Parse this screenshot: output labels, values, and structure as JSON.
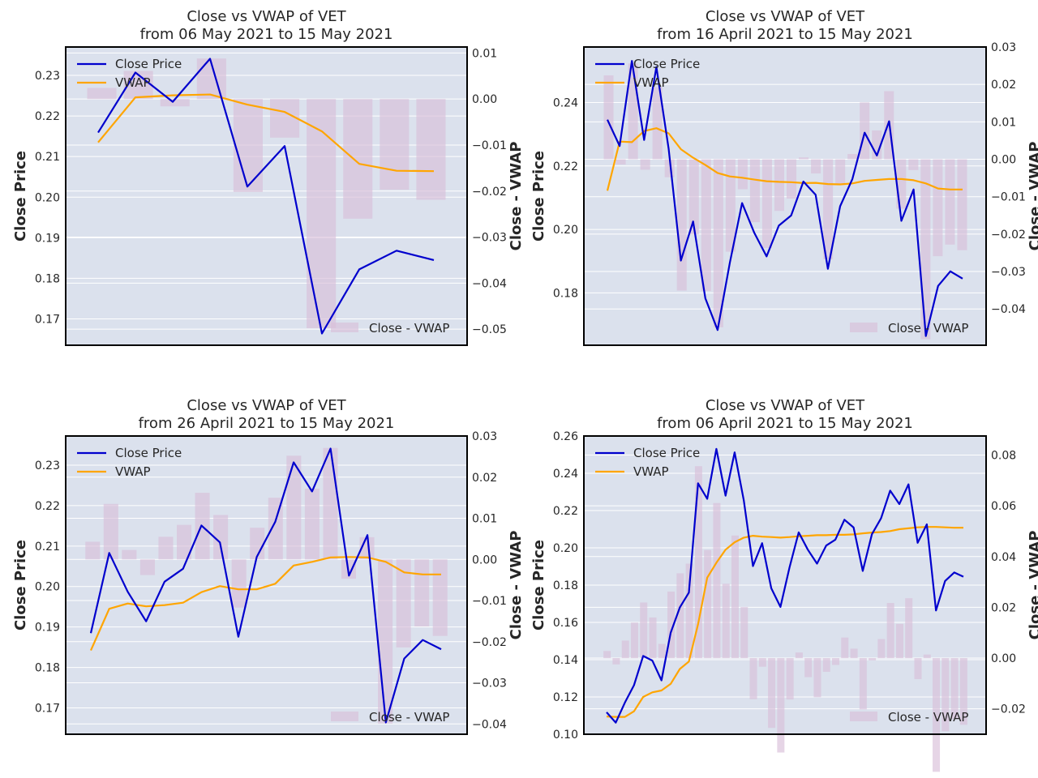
{
  "chart_data": [
    {
      "type": "line",
      "title": "Close vs VWAP of VET\nfrom 06 May 2021 to 15 May 2021",
      "ylabel": "Close Price",
      "y2label": "Close - VWAP",
      "ylim": [
        0.1635,
        0.237
      ],
      "y2lim": [
        -0.0535,
        0.0113
      ],
      "yticks": [
        "0.17",
        "0.18",
        "0.19",
        "0.20",
        "0.21",
        "0.22",
        "0.23"
      ],
      "y2ticks": [
        "−0.05",
        "−0.04",
        "−0.03",
        "−0.02",
        "−0.01",
        "0.00",
        "0.01"
      ],
      "legend_main": [
        "Close Price",
        "VWAP"
      ],
      "legend_diff": "Close - VWAP",
      "grid": true,
      "series": [
        {
          "name": "Close Price",
          "color": "#0000cd",
          "values": [
            0.2159,
            0.2307,
            0.2235,
            0.2341,
            0.2026,
            0.2126,
            0.1664,
            0.1822,
            0.1868,
            0.1845
          ]
        },
        {
          "name": "VWAP",
          "color": "#ffa500",
          "values": [
            0.2135,
            0.2246,
            0.2251,
            0.2253,
            0.2228,
            0.221,
            0.2162,
            0.2082,
            0.2065,
            0.2064
          ]
        },
        {
          "name": "Close - VWAP",
          "color": "#d8bfd8",
          "values": [
            0.0024,
            0.0061,
            -0.0016,
            0.0088,
            -0.0202,
            -0.0084,
            -0.0498,
            -0.026,
            -0.0197,
            -0.0219
          ]
        }
      ]
    },
    {
      "type": "line",
      "title": "Close vs VWAP of VET\nfrom 16 April 2021 to 15 May 2021",
      "ylabel": "Close Price",
      "y2label": "Close - VWAP",
      "ylim": [
        0.1635,
        0.2575
      ],
      "y2lim": [
        -0.0497,
        0.03
      ],
      "yticks": [
        "0.18",
        "0.20",
        "0.22",
        "0.24"
      ],
      "y2ticks": [
        "−0.04",
        "−0.03",
        "−0.02",
        "−0.01",
        "0.00",
        "0.01",
        "0.02",
        "0.03"
      ],
      "legend_main": [
        "Close Price",
        "VWAP"
      ],
      "legend_diff": "Close - VWAP",
      "grid": true,
      "series": [
        {
          "name": "Close Price",
          "color": "#0000cd",
          "values": [
            0.2346,
            0.2263,
            0.2531,
            0.2282,
            0.2512,
            0.2255,
            0.1902,
            0.2025,
            0.1783,
            0.1683,
            0.1895,
            0.2083,
            0.1989,
            0.1915,
            0.2012,
            0.2044,
            0.2151,
            0.2109,
            0.1876,
            0.2073,
            0.2159,
            0.2305,
            0.2233,
            0.2341,
            0.2027,
            0.2126,
            0.1664,
            0.1822,
            0.1868,
            0.1845
          ]
        },
        {
          "name": "VWAP",
          "color": "#ffa500",
          "values": [
            0.2122,
            0.2277,
            0.2275,
            0.231,
            0.2319,
            0.2303,
            0.2253,
            0.2226,
            0.2203,
            0.2178,
            0.2167,
            0.2163,
            0.2157,
            0.2152,
            0.215,
            0.2149,
            0.2146,
            0.2147,
            0.2143,
            0.2142,
            0.2145,
            0.2153,
            0.2156,
            0.2159,
            0.2159,
            0.2155,
            0.2145,
            0.2129,
            0.2126,
            0.2126
          ]
        },
        {
          "name": "Close - VWAP",
          "color": "#d8bfd8",
          "values": [
            0.0224,
            -0.0014,
            0.0256,
            -0.0028,
            0.0193,
            -0.0048,
            -0.0351,
            -0.0201,
            -0.0352,
            -0.0449,
            -0.0247,
            -0.008,
            -0.0168,
            -0.0237,
            -0.0138,
            -0.0105,
            0.0005,
            -0.0038,
            -0.0267,
            -0.0069,
            0.0014,
            0.0152,
            0.0077,
            0.0182,
            -0.0132,
            -0.0029,
            -0.0481,
            -0.0259,
            -0.0228,
            -0.0243
          ]
        }
      ]
    },
    {
      "type": "line",
      "title": "Close vs VWAP of VET\nfrom 26 April 2021 to 15 May 2021",
      "ylabel": "Close Price",
      "y2label": "Close - VWAP",
      "ylim": [
        0.1635,
        0.2372
      ],
      "y2lim": [
        -0.0425,
        0.03
      ],
      "yticks": [
        "0.17",
        "0.18",
        "0.19",
        "0.20",
        "0.21",
        "0.22",
        "0.23"
      ],
      "y2ticks": [
        "−0.04",
        "−0.03",
        "−0.02",
        "−0.01",
        "0.00",
        "0.01",
        "0.02",
        "0.03"
      ],
      "legend_main": [
        "Close Price",
        "VWAP"
      ],
      "legend_diff": "Close - VWAP",
      "grid": true,
      "series": [
        {
          "name": "Close Price",
          "color": "#0000cd",
          "values": [
            0.1885,
            0.2083,
            0.1987,
            0.1914,
            0.2012,
            0.2044,
            0.2151,
            0.2109,
            0.1876,
            0.2073,
            0.216,
            0.2307,
            0.2235,
            0.2341,
            0.2027,
            0.2127,
            0.1664,
            0.1822,
            0.1868,
            0.1845
          ]
        },
        {
          "name": "VWAP",
          "color": "#ffa500",
          "values": [
            0.1842,
            0.1945,
            0.1958,
            0.1951,
            0.1954,
            0.196,
            0.1986,
            0.2001,
            0.1993,
            0.1993,
            0.2007,
            0.2052,
            0.2061,
            0.2072,
            0.2073,
            0.2072,
            0.2061,
            0.2035,
            0.203,
            0.203
          ]
        },
        {
          "name": "Close - VWAP",
          "color": "#d8bfd8",
          "values": [
            0.0043,
            0.0135,
            0.0023,
            -0.0038,
            0.0055,
            0.0084,
            0.0162,
            0.0108,
            -0.0117,
            0.0077,
            0.015,
            0.0252,
            0.0172,
            0.0271,
            -0.0047,
            0.0054,
            -0.0399,
            -0.0214,
            -0.0163,
            -0.0186
          ]
        }
      ]
    },
    {
      "type": "line",
      "title": "Close vs VWAP of VET\nfrom 06 April 2021 to 15 May 2021",
      "ylabel": "Close Price",
      "y2label": "Close - VWAP",
      "ylim": [
        0.1,
        0.26
      ],
      "y2lim": [
        -0.03,
        0.0875
      ],
      "yticks": [
        "0.10",
        "0.12",
        "0.14",
        "0.16",
        "0.18",
        "0.20",
        "0.22",
        "0.24",
        "0.26"
      ],
      "y2ticks": [
        "−0.02",
        "0.00",
        "0.02",
        "0.04",
        "0.06",
        "0.08"
      ],
      "legend_main": [
        "Close Price",
        "VWAP"
      ],
      "legend_diff": "Close - VWAP",
      "grid": true,
      "series": [
        {
          "name": "Close Price",
          "color": "#0000cd",
          "values": [
            0.1118,
            0.1062,
            0.117,
            0.1263,
            0.142,
            0.1395,
            0.1289,
            0.1544,
            0.168,
            0.176,
            0.2346,
            0.2263,
            0.2531,
            0.228,
            0.2512,
            0.2255,
            0.1902,
            0.2025,
            0.1783,
            0.1683,
            0.1895,
            0.2083,
            0.199,
            0.1915,
            0.2012,
            0.2044,
            0.2151,
            0.2109,
            0.1876,
            0.2073,
            0.2159,
            0.2307,
            0.2235,
            0.2341,
            0.2027,
            0.2126,
            0.1664,
            0.1822,
            0.1868,
            0.1845
          ]
        },
        {
          "name": "VWAP",
          "color": "#ffa500",
          "values": [
            0.1095,
            0.1093,
            0.1093,
            0.1123,
            0.12,
            0.1225,
            0.1235,
            0.127,
            0.135,
            0.139,
            0.159,
            0.184,
            0.192,
            0.199,
            0.203,
            0.2055,
            0.2065,
            0.206,
            0.2058,
            0.2055,
            0.2058,
            0.2062,
            0.2065,
            0.2068,
            0.2068,
            0.207,
            0.207,
            0.2072,
            0.2078,
            0.2082,
            0.2085,
            0.209,
            0.21,
            0.2105,
            0.211,
            0.2112,
            0.2112,
            0.211,
            0.2108,
            0.2108
          ]
        },
        {
          "name": "Close - VWAP",
          "color": "#d8bfd8",
          "values": [
            0.0028,
            -0.0025,
            0.0069,
            0.014,
            0.0219,
            0.016,
            0.0056,
            0.0262,
            0.0334,
            0.0372,
            0.0756,
            0.0426,
            0.0611,
            0.0293,
            0.0483,
            0.0201,
            -0.0162,
            -0.0034,
            -0.0275,
            -0.0372,
            -0.0163,
            0.0022,
            -0.0075,
            -0.0154,
            -0.0054,
            -0.0027,
            0.0081,
            0.0037,
            -0.0202,
            -0.0009,
            0.0075,
            0.0217,
            0.0135,
            0.0236,
            -0.0083,
            0.0014,
            -0.0448,
            -0.0288,
            -0.024,
            -0.0263
          ]
        }
      ]
    }
  ]
}
